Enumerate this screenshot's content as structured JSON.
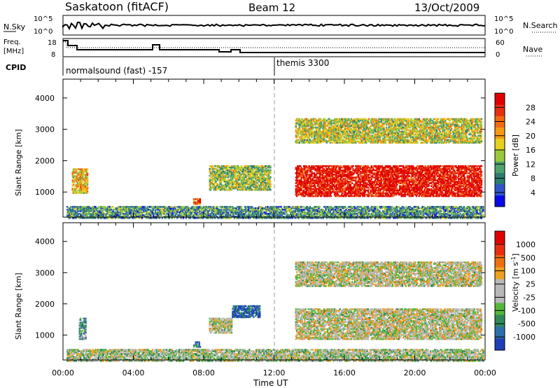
{
  "header": {
    "station": "Saskatoon (fitACF)",
    "beam": "Beam 12",
    "date": "13/Oct/2009"
  },
  "panels": {
    "nsky": {
      "label": "N.Sky",
      "left_ticks": [
        "10^5",
        "10^0"
      ],
      "right_ticks": [
        "10^5",
        "10^0"
      ],
      "right_label": "N.Search"
    },
    "freq": {
      "label_line1": "Freq.",
      "label_line2": "[MHz]",
      "left_ticks": [
        "18",
        "8"
      ],
      "right_ticks": [
        "60",
        "0"
      ],
      "right_label": "Nave"
    },
    "cpid": {
      "label": "CPID",
      "modes": [
        "normalsound (fast) -157",
        "themis 3300"
      ]
    }
  },
  "chart_data": [
    {
      "type": "heatmap",
      "name": "power",
      "ylabel": "Slant Range [km]",
      "xlabel": "",
      "ylim": [
        200,
        4600
      ],
      "xlim_hours": [
        0,
        24
      ],
      "yticks": [
        "1000",
        "2000",
        "3000",
        "4000"
      ],
      "colorbar": {
        "label": "Power [dB]",
        "ticks": [
          "4",
          "8",
          "12",
          "16",
          "20",
          "24",
          "28"
        ],
        "colors": [
          "#0a0ae6",
          "#2f55c8",
          "#2d7d6f",
          "#4fa26c",
          "#9ac83c",
          "#e8d020",
          "#f59a14",
          "#f06a14",
          "#e83010",
          "#e00000"
        ]
      },
      "regions": [
        {
          "t0": 0.5,
          "t1": 1.4,
          "r0": 1000,
          "r1": 1800,
          "level": 0.6
        },
        {
          "t0": 7.4,
          "t1": 7.8,
          "r0": 650,
          "r1": 850,
          "level": 0.75
        },
        {
          "t0": 8.3,
          "t1": 11.8,
          "r0": 1100,
          "r1": 1900,
          "level": 0.45
        },
        {
          "t0": 13.2,
          "t1": 23.8,
          "r0": 900,
          "r1": 1900,
          "level": 0.95
        },
        {
          "t0": 13.2,
          "t1": 23.8,
          "r0": 2600,
          "r1": 3400,
          "level": 0.5
        },
        {
          "t0": 0.2,
          "t1": 23.9,
          "r0": 200,
          "r1": 600,
          "level": 0.3
        }
      ]
    },
    {
      "type": "heatmap",
      "name": "velocity",
      "ylabel": "Slant Range [km]",
      "xlabel": "Time UT",
      "ylim": [
        200,
        4600
      ],
      "xlim_hours": [
        0,
        24
      ],
      "yticks": [
        "1000",
        "2000",
        "3000",
        "4000"
      ],
      "xticks": [
        "00:00",
        "04:00",
        "08:00",
        "12:00",
        "16:00",
        "20:00",
        "00:00"
      ],
      "colorbar": {
        "label": "Velocity [m s^-1]",
        "ticks": [
          "1000",
          "500",
          "100",
          "25",
          "-25",
          "-100",
          "-500",
          "-1000"
        ],
        "colors": [
          "#1f3fb8",
          "#2f6fa8",
          "#2f8a5a",
          "#55b83a",
          "#b8b8b8",
          "#b8b8b8",
          "#f0a020",
          "#f07010",
          "#e83010",
          "#e00000"
        ]
      },
      "regions": [
        {
          "t0": 0.9,
          "t1": 1.3,
          "r0": 900,
          "r1": 1600,
          "level": 0.3
        },
        {
          "t0": 7.4,
          "t1": 7.8,
          "r0": 650,
          "r1": 850,
          "level": 0.15
        },
        {
          "t0": 8.3,
          "t1": 9.6,
          "r0": 1100,
          "r1": 1600,
          "level": 0.5
        },
        {
          "t0": 9.6,
          "t1": 11.2,
          "r0": 1600,
          "r1": 2000,
          "level": 0.1
        },
        {
          "t0": 13.2,
          "t1": 23.8,
          "r0": 900,
          "r1": 1900,
          "level": 0.5
        },
        {
          "t0": 13.2,
          "t1": 23.8,
          "r0": 2600,
          "r1": 3400,
          "level": 0.5
        },
        {
          "t0": 0.2,
          "t1": 23.9,
          "r0": 200,
          "r1": 600,
          "level": 0.45
        }
      ]
    }
  ]
}
